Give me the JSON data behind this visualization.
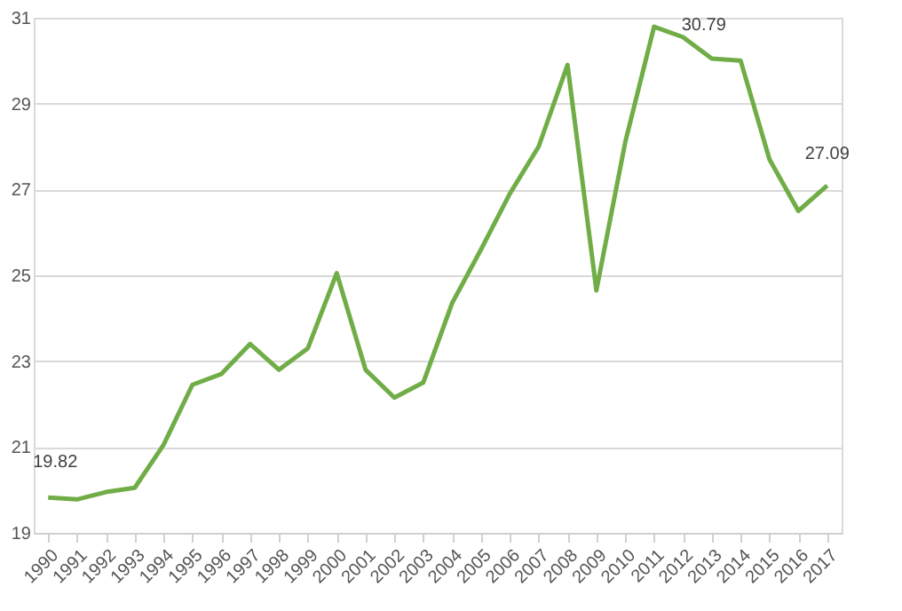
{
  "chart_data": {
    "type": "line",
    "categories": [
      "1990",
      "1991",
      "1992",
      "1993",
      "1994",
      "1995",
      "1996",
      "1997",
      "1998",
      "1999",
      "2000",
      "2001",
      "2002",
      "2003",
      "2004",
      "2005",
      "2006",
      "2007",
      "2008",
      "2009",
      "2010",
      "2011",
      "2012",
      "2013",
      "2014",
      "2015",
      "2016",
      "2017"
    ],
    "series": [
      {
        "color": "#70ad47",
        "values": [
          19.82,
          19.78,
          19.95,
          20.05,
          21.05,
          22.45,
          22.7,
          23.4,
          22.8,
          23.3,
          25.05,
          22.8,
          22.15,
          22.5,
          24.35,
          25.6,
          26.9,
          28.0,
          29.9,
          24.65,
          28.1,
          30.79,
          30.55,
          30.05,
          30.0,
          27.7,
          26.5,
          27.09
        ]
      }
    ],
    "ylim": [
      19,
      31
    ],
    "yticks": [
      19,
      21,
      23,
      25,
      27,
      29,
      31
    ],
    "grid": "y",
    "marker": "none",
    "line_style": "solid",
    "annotations": [
      {
        "text": "19.82",
        "x": "1990",
        "y": 19.82
      },
      {
        "text": "30.79",
        "x": "2011",
        "y": 30.79
      },
      {
        "text": "27.09",
        "x": "2017",
        "y": 27.09
      }
    ]
  }
}
